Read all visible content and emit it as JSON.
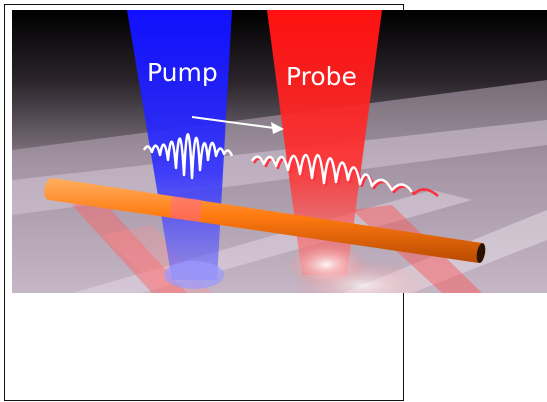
{
  "labels": {
    "pump": "Pump",
    "probe": "Probe"
  },
  "colors": {
    "pump_beam": "#1a1aff",
    "probe_beam": "#ff1a1a",
    "nanowire": "#ff7a10",
    "background": "#000000",
    "substrate": "#c8b8c8",
    "pulse": "#ffffff"
  }
}
